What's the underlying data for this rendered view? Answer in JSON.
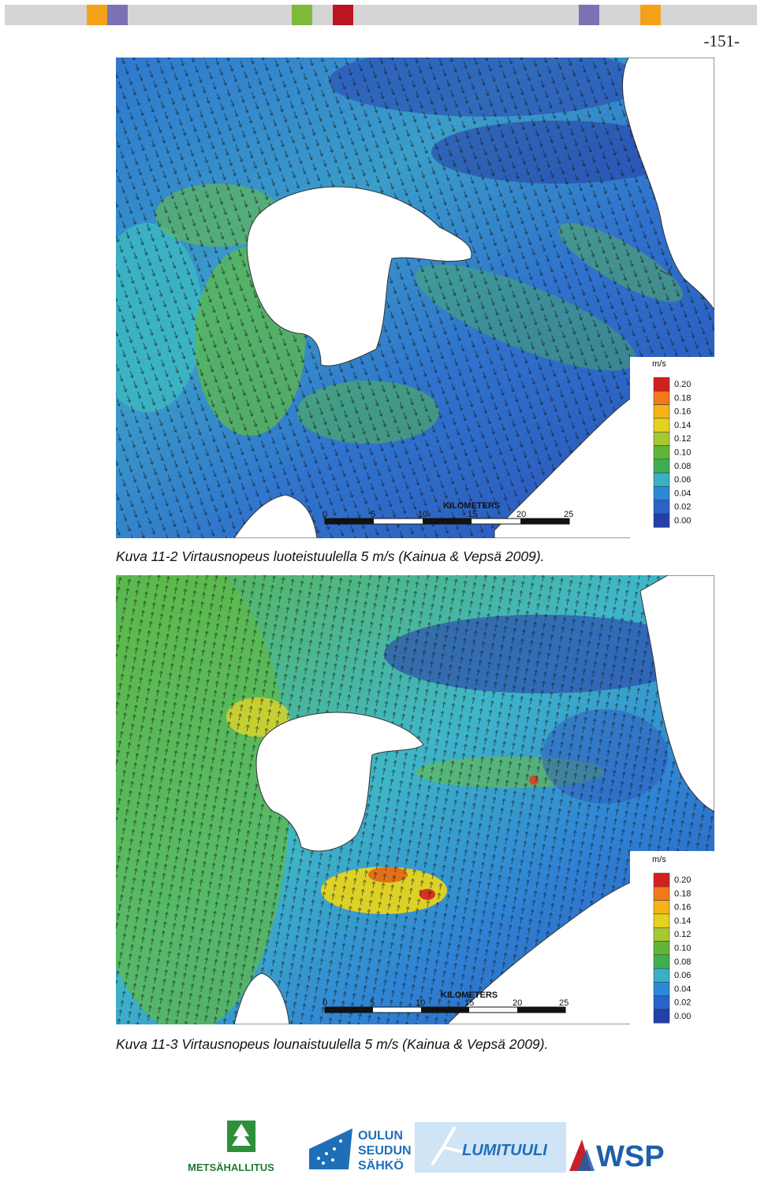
{
  "page_number": "-151-",
  "header_colors": [
    "#d5d5d5",
    "#d5d5d5",
    "#d5d5d5",
    "#d5d5d5",
    "#f4a11a",
    "#7b72b5",
    "#d5d5d5",
    "#d5d5d5",
    "#d5d5d5",
    "#d5d5d5",
    "#d5d5d5",
    "#d5d5d5",
    "#d5d5d5",
    "#d5d5d5",
    "#7dba3c",
    "#d5d5d5",
    "#bb1522",
    "#d5d5d5",
    "#d5d5d5",
    "#d5d5d5",
    "#d5d5d5",
    "#d5d5d5",
    "#d5d5d5",
    "#d5d5d5",
    "#d5d5d5",
    "#d5d5d5",
    "#d5d5d5",
    "#d5d5d5",
    "#7b72b5",
    "#d5d5d5",
    "#d5d5d5",
    "#f4a11a",
    "#d5d5d5",
    "#d5d5d5",
    "#d5d5d5",
    "#d5d5d5",
    "#d5d5d5"
  ],
  "figures": [
    {
      "caption": "Kuva 11-2 Virtausnopeus luoteistuulella 5 m/s (Kainua & Vepsä 2009).",
      "scale_title": "KILOMETERS",
      "scale_ticks": [
        "0",
        "5",
        "10",
        "15",
        "20",
        "25"
      ],
      "legend_unit": "m/s",
      "legend_values": [
        "0.20",
        "0.18",
        "0.16",
        "0.14",
        "0.12",
        "0.10",
        "0.08",
        "0.06",
        "0.04",
        "0.02",
        "0.00"
      ]
    },
    {
      "caption": "Kuva 11-3 Virtausnopeus lounaistuulella 5 m/s (Kainua & Vepsä 2009).",
      "scale_title": "KILOMETERS",
      "scale_ticks": [
        "0",
        "5",
        "10",
        "15",
        "20",
        "25"
      ],
      "legend_unit": "m/s",
      "legend_values": [
        "0.20",
        "0.18",
        "0.16",
        "0.14",
        "0.12",
        "0.10",
        "0.08",
        "0.06",
        "0.04",
        "0.02",
        "0.00"
      ]
    }
  ],
  "legend_colors": [
    "#d22020",
    "#f07a18",
    "#f4b418",
    "#e6d21e",
    "#a6c830",
    "#62b438",
    "#3cb050",
    "#38b0c8",
    "#2a8ad8",
    "#2a62c8",
    "#2440a8"
  ],
  "logos": {
    "metsahallitus": "METSÄHALLITUS",
    "oulun_line1": "OULUN",
    "oulun_line2": "SEUDUN",
    "oulun_line3": "SÄHKÖ",
    "lumituuli": "LUMITUULI",
    "wsp": "WSP"
  }
}
